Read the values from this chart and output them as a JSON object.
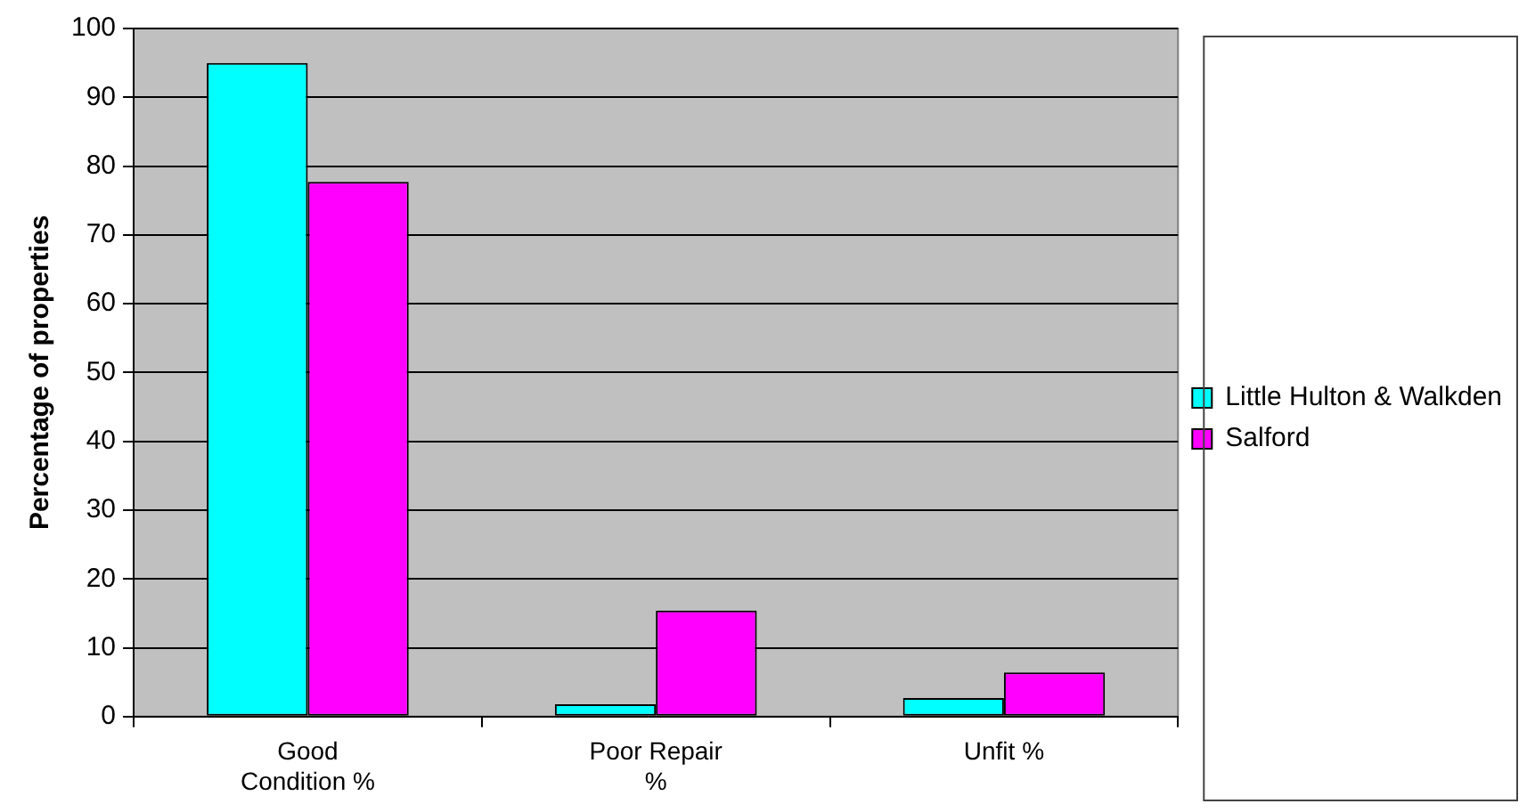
{
  "chart_data": {
    "type": "bar",
    "ylabel": "Percentage of properties",
    "categories": [
      "Good Condition %",
      "Poor Repair %",
      "Unfit %"
    ],
    "series": [
      {
        "name": "Little Hulton & Walkden",
        "color": "#00ffff",
        "values": [
          95,
          1.8,
          2.7
        ]
      },
      {
        "name": "Salford",
        "color": "#ff00ff",
        "values": [
          77.7,
          15.4,
          6.4
        ]
      }
    ],
    "ylim": [
      0,
      100
    ],
    "yticks": [
      0,
      10,
      20,
      30,
      40,
      50,
      60,
      70,
      80,
      90,
      100
    ],
    "grid": "y",
    "legend": "right"
  }
}
